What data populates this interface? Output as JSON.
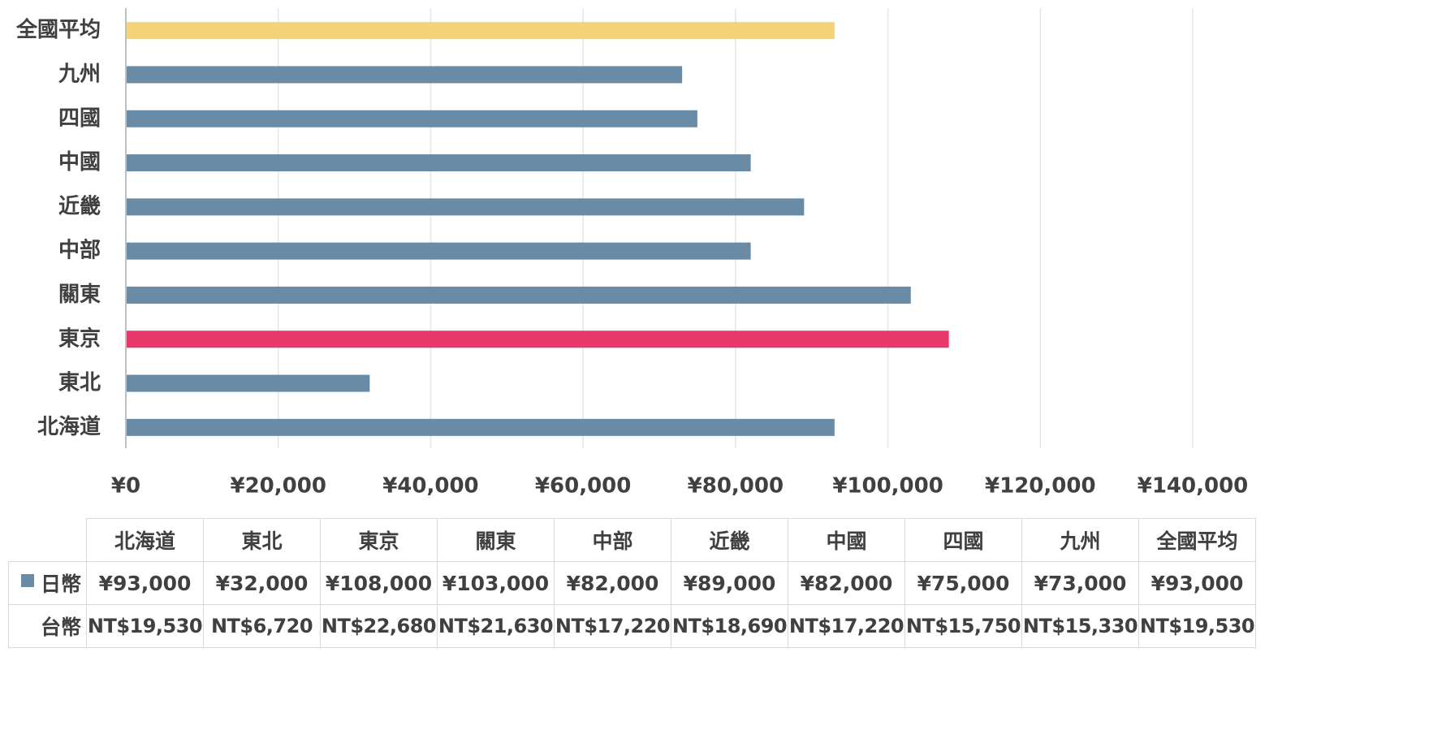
{
  "chart_data": {
    "type": "bar",
    "orientation": "horizontal",
    "categories": [
      "北海道",
      "東北",
      "東京",
      "關東",
      "中部",
      "近畿",
      "中國",
      "四國",
      "九州",
      "全國平均"
    ],
    "series": [
      {
        "name": "日幣",
        "values": [
          93000,
          32000,
          108000,
          103000,
          82000,
          89000,
          82000,
          75000,
          73000,
          93000
        ]
      }
    ],
    "bar_colors": [
      "#6a8ba6",
      "#6a8ba6",
      "#e8386a",
      "#6a8ba6",
      "#6a8ba6",
      "#6a8ba6",
      "#6a8ba6",
      "#6a8ba6",
      "#6a8ba6",
      "#f6d37a"
    ],
    "xlim": [
      0,
      140000
    ],
    "x_ticks": [
      0,
      20000,
      40000,
      60000,
      80000,
      100000,
      120000,
      140000
    ],
    "x_tick_labels": [
      "¥0",
      "¥20,000",
      "¥40,000",
      "¥60,000",
      "¥80,000",
      "¥100,000",
      "¥120,000",
      "¥140,000"
    ],
    "grid": true,
    "title": "",
    "xlabel": "",
    "ylabel": ""
  },
  "data_table": {
    "headers": [
      "北海道",
      "東北",
      "東京",
      "關東",
      "中部",
      "近畿",
      "中國",
      "四國",
      "九州",
      "全國平均"
    ],
    "rows": [
      {
        "label": "日幣",
        "legend_color": "#6a8ba6",
        "values": [
          "¥93,000",
          "¥32,000",
          "¥108,000",
          "¥103,000",
          "¥82,000",
          "¥89,000",
          "¥82,000",
          "¥75,000",
          "¥73,000",
          "¥93,000"
        ]
      },
      {
        "label": "台幣",
        "values": [
          "NT$19,530",
          "NT$6,720",
          "NT$22,680",
          "NT$21,630",
          "NT$17,220",
          "NT$18,690",
          "NT$17,220",
          "NT$15,750",
          "NT$15,330",
          "NT$19,530"
        ]
      }
    ]
  }
}
